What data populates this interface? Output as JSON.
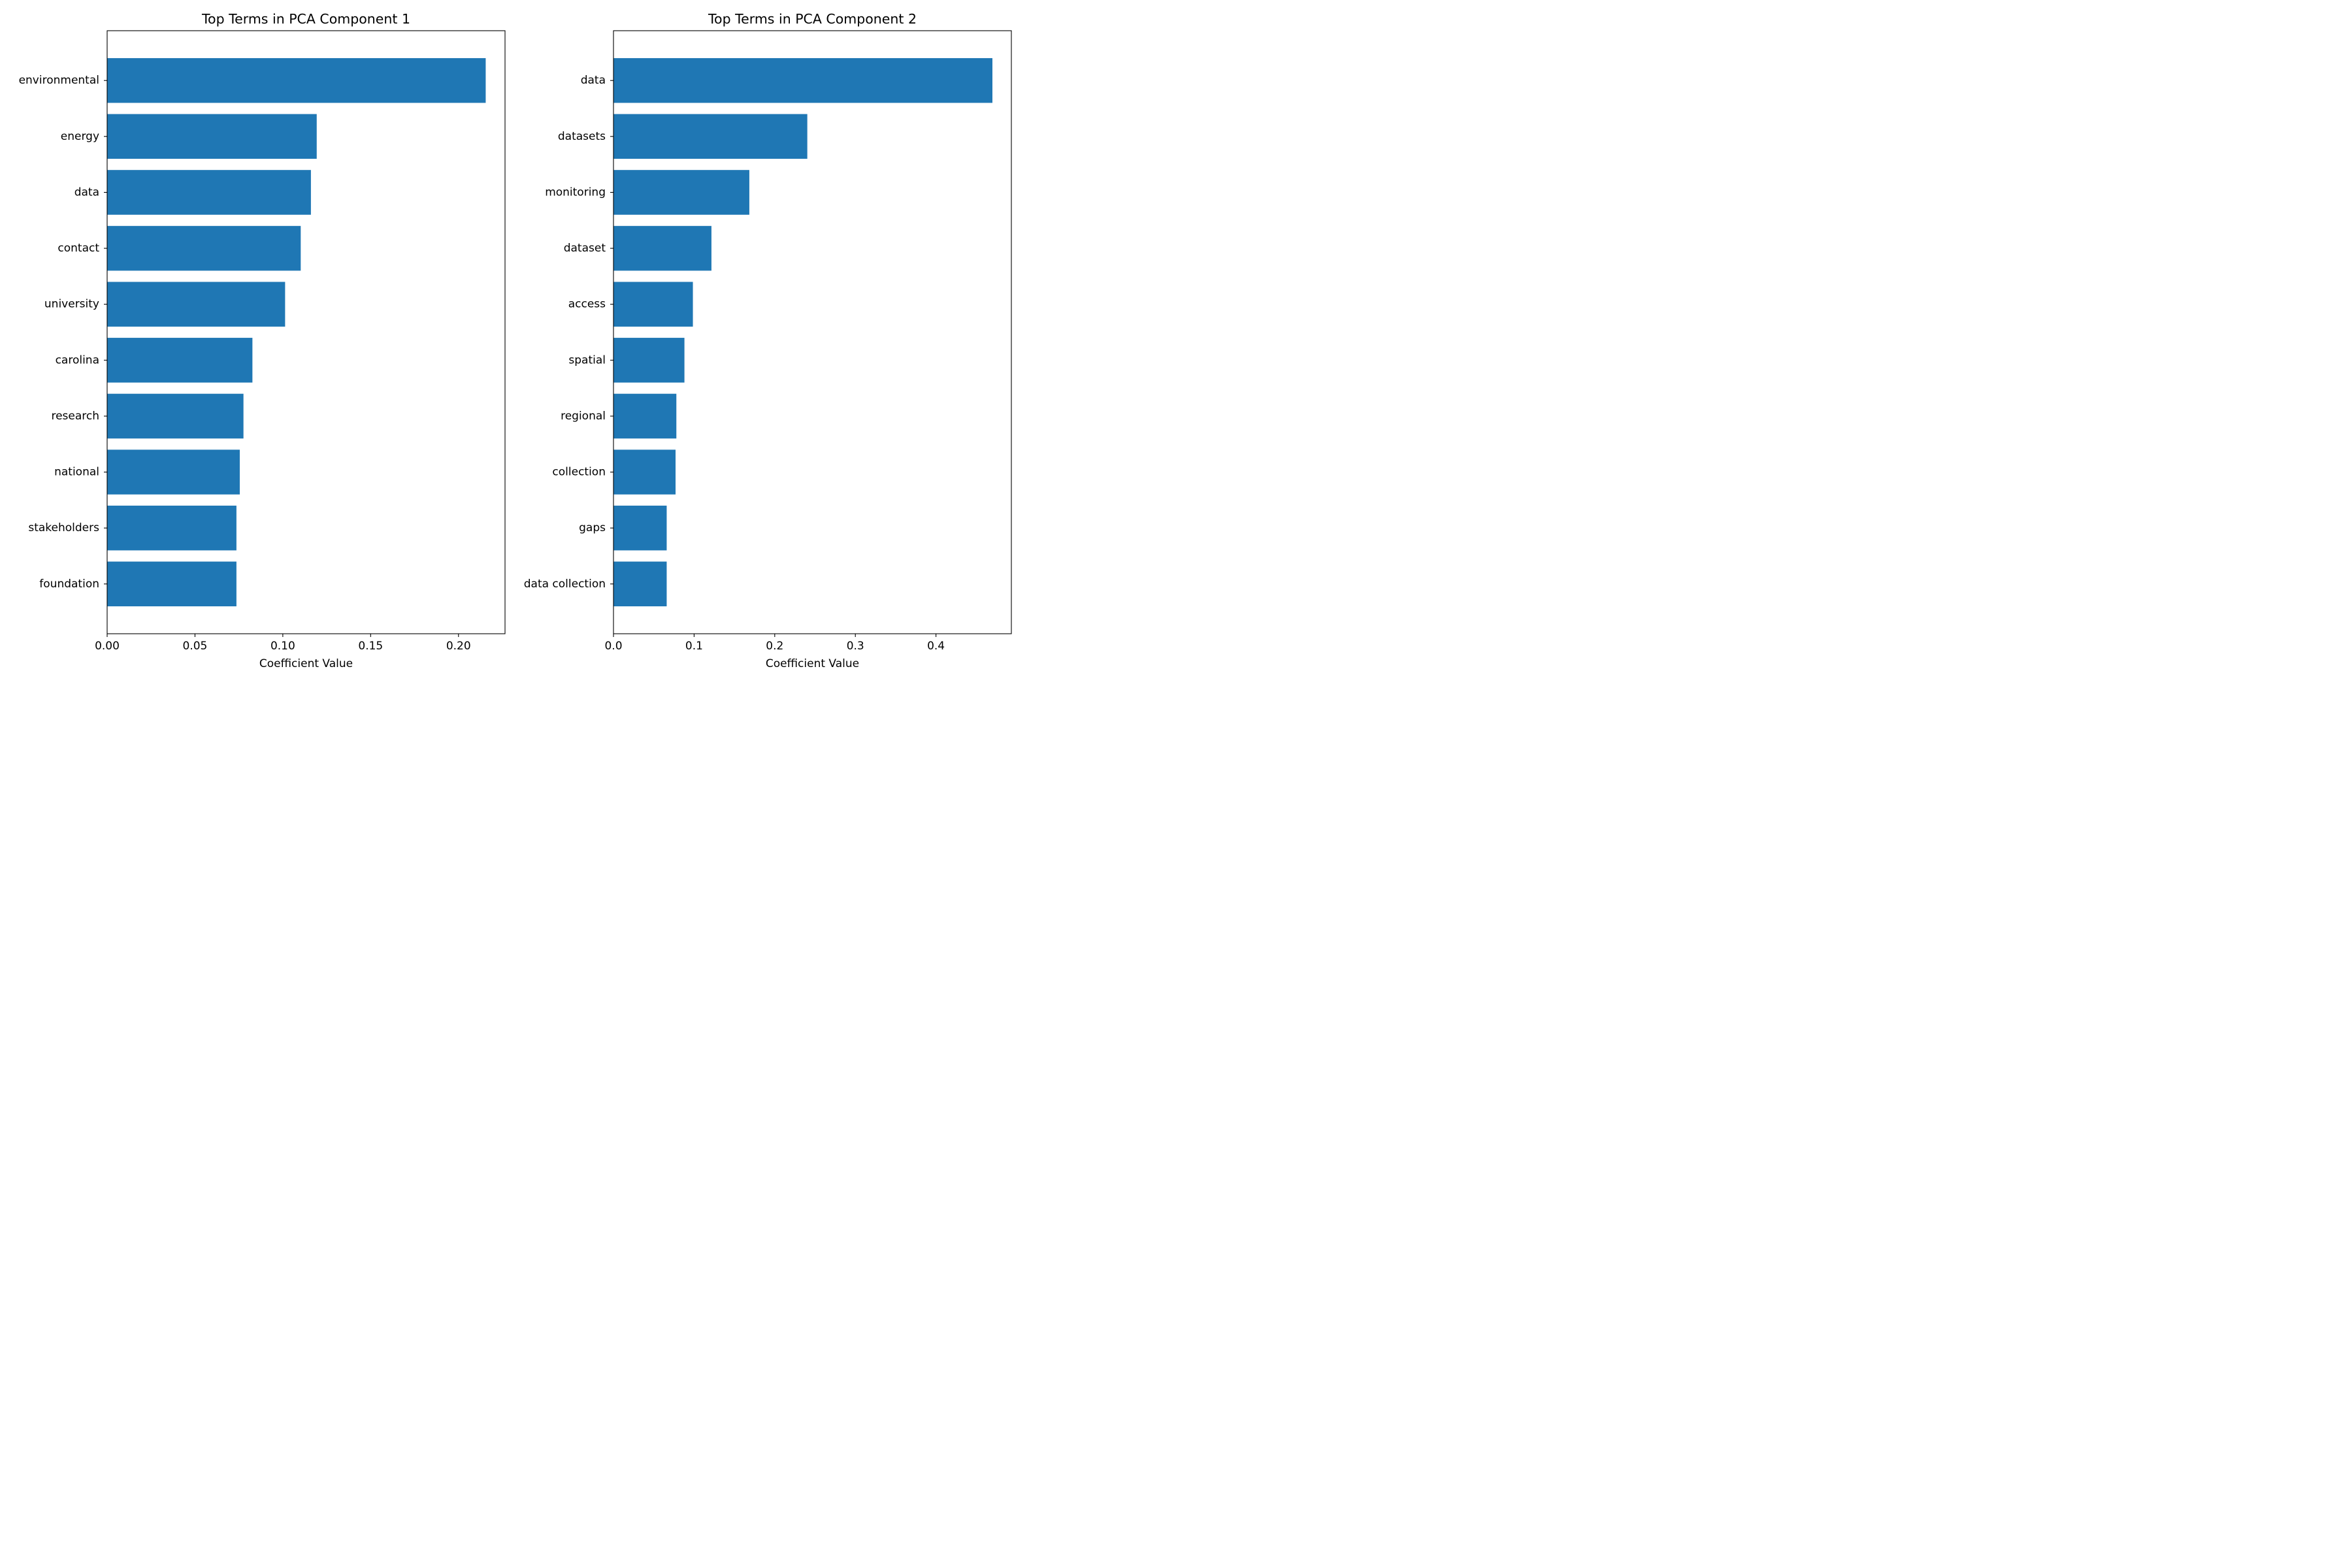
{
  "chart_data": [
    {
      "type": "bar",
      "orientation": "horizontal",
      "title": "Top Terms in PCA Component 1",
      "xlabel": "Coefficient Value",
      "ylabel": "",
      "xlim": [
        0,
        0.2265
      ],
      "xticks": [
        0.0,
        0.05,
        0.1,
        0.15,
        0.2
      ],
      "xtick_labels": [
        "0.00",
        "0.05",
        "0.10",
        "0.15",
        "0.20"
      ],
      "categories": [
        "environmental",
        "energy",
        "data",
        "contact",
        "university",
        "carolina",
        "research",
        "national",
        "stakeholders",
        "foundation"
      ],
      "values": [
        0.2155,
        0.1193,
        0.116,
        0.1102,
        0.1013,
        0.0827,
        0.0776,
        0.0755,
        0.0736,
        0.0736
      ],
      "color": "#1f77b4",
      "grid": false,
      "legend": "none"
    },
    {
      "type": "bar",
      "orientation": "horizontal",
      "title": "Top Terms in PCA Component 2",
      "xlabel": "Coefficient Value",
      "ylabel": "",
      "xlim": [
        0,
        0.4935
      ],
      "xticks": [
        0.0,
        0.1,
        0.2,
        0.3,
        0.4
      ],
      "xtick_labels": [
        "0.0",
        "0.1",
        "0.2",
        "0.3",
        "0.4"
      ],
      "categories": [
        "data",
        "datasets",
        "monitoring",
        "dataset",
        "access",
        "spatial",
        "regional",
        "collection",
        "gaps",
        "data collection"
      ],
      "values": [
        0.47,
        0.2404,
        0.1685,
        0.1215,
        0.0985,
        0.088,
        0.078,
        0.077,
        0.066,
        0.066
      ],
      "color": "#1f77b4",
      "grid": false,
      "legend": "none"
    }
  ]
}
